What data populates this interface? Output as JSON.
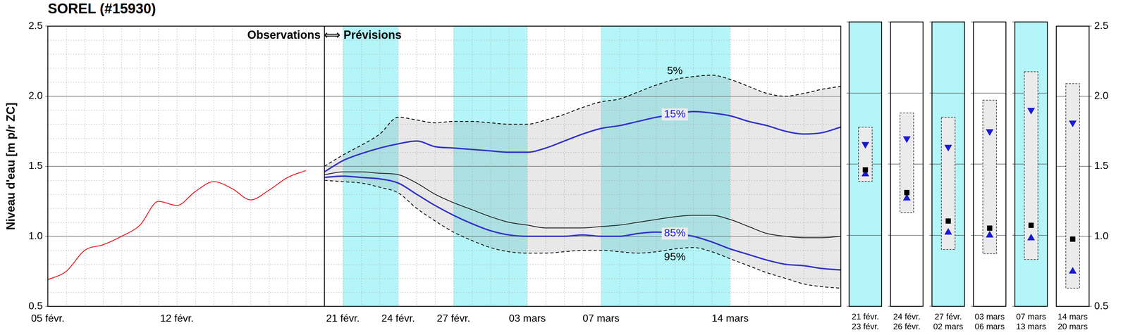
{
  "chart_data": {
    "type": "line",
    "title": "SOREL (#15930)",
    "y_label": "Niveau d'eau [m p/r ZC]",
    "divider_label": "Observations ⟺ Prévisions",
    "categories": [
      "05 févr.",
      null,
      null,
      null,
      null,
      null,
      null,
      "12 févr.",
      null,
      null,
      null,
      null,
      null,
      null,
      null,
      null,
      "21 févr.",
      null,
      null,
      "24 févr.",
      null,
      null,
      "27 févr.",
      null,
      null,
      null,
      "03 mars",
      null,
      null,
      null,
      "07 mars",
      null,
      null,
      null,
      null,
      null,
      null,
      "14 mars",
      null,
      null,
      null,
      null,
      null,
      null
    ],
    "ylim": [
      0.5,
      2.5
    ],
    "yticks": [
      0.5,
      {
        "value": 1,
        "label": "1.0"
      },
      1.5,
      {
        "value": 2,
        "label": "2.0"
      },
      2.5
    ],
    "grid": true,
    "series": [
      {
        "color": "#e8141c",
        "line_style": "solid",
        "values": [
          0.69,
          0.75,
          0.9,
          0.94,
          1.0,
          1.08,
          1.25,
          1.22,
          1.32,
          1.39,
          1.34,
          1.26,
          1.33,
          1.42,
          1.47,
          null,
          null,
          null,
          null,
          null,
          null,
          null,
          null,
          null,
          null,
          null,
          null,
          null,
          null,
          null,
          null,
          null,
          null,
          null,
          null,
          null,
          null,
          null,
          null,
          null,
          null,
          null,
          null,
          null
        ]
      },
      {
        "name": "5%",
        "color": "#000000",
        "line_style": "dashed",
        "values": [
          null,
          null,
          null,
          null,
          null,
          null,
          null,
          null,
          null,
          null,
          null,
          null,
          null,
          null,
          null,
          1.5,
          1.58,
          1.65,
          1.73,
          1.85,
          1.83,
          1.81,
          1.82,
          1.82,
          1.81,
          1.8,
          1.8,
          1.83,
          1.87,
          1.92,
          1.96,
          1.98,
          2.03,
          2.08,
          2.12,
          2.14,
          2.15,
          2.12,
          2.07,
          2.02,
          2.0,
          2.02,
          2.05,
          2.07
        ]
      },
      {
        "name": "15%",
        "color": "#1a1ad6",
        "line_style": "solid",
        "values": [
          null,
          null,
          null,
          null,
          null,
          null,
          null,
          null,
          null,
          null,
          null,
          null,
          null,
          null,
          null,
          1.46,
          1.54,
          1.59,
          1.63,
          1.66,
          1.68,
          1.64,
          1.63,
          1.62,
          1.61,
          1.6,
          1.6,
          1.63,
          1.68,
          1.73,
          1.77,
          1.79,
          1.82,
          1.85,
          1.87,
          1.89,
          1.88,
          1.86,
          1.82,
          1.79,
          1.75,
          1.73,
          1.74,
          1.78
        ]
      },
      {
        "color": "#000000",
        "line_style": "solid",
        "values": [
          null,
          null,
          null,
          null,
          null,
          null,
          null,
          null,
          null,
          null,
          null,
          null,
          null,
          null,
          null,
          1.44,
          1.46,
          1.46,
          1.45,
          1.44,
          1.38,
          1.3,
          1.24,
          1.19,
          1.14,
          1.1,
          1.08,
          1.06,
          1.06,
          1.06,
          1.07,
          1.08,
          1.1,
          1.12,
          1.14,
          1.15,
          1.15,
          1.12,
          1.07,
          1.02,
          1.0,
          0.99,
          0.99,
          1.0
        ]
      },
      {
        "name": "85%",
        "color": "#1a1ad6",
        "line_style": "solid",
        "values": [
          null,
          null,
          null,
          null,
          null,
          null,
          null,
          null,
          null,
          null,
          null,
          null,
          null,
          null,
          null,
          1.42,
          1.43,
          1.42,
          1.41,
          1.38,
          1.3,
          1.22,
          1.15,
          1.09,
          1.04,
          1.01,
          1.0,
          1.0,
          1.0,
          1.01,
          1.0,
          1.0,
          1.02,
          1.03,
          1.02,
          1.0,
          0.96,
          0.91,
          0.87,
          0.83,
          0.8,
          0.79,
          0.77,
          0.76
        ]
      },
      {
        "name": "95%",
        "color": "#000000",
        "line_style": "dashed",
        "values": [
          null,
          null,
          null,
          null,
          null,
          null,
          null,
          null,
          null,
          null,
          null,
          null,
          null,
          null,
          null,
          1.4,
          1.39,
          1.38,
          1.35,
          1.31,
          1.2,
          1.11,
          1.03,
          0.97,
          0.92,
          0.89,
          0.88,
          0.88,
          0.89,
          0.9,
          0.9,
          0.89,
          0.88,
          0.89,
          0.91,
          0.92,
          0.89,
          0.84,
          0.79,
          0.74,
          0.7,
          0.66,
          0.64,
          0.63
        ]
      }
    ],
    "shaded_periods": [
      {
        "from": "21 févr.",
        "to": "24 févr."
      },
      {
        "from": "27 févr.",
        "to": "03 mars"
      },
      {
        "from": "07 mars",
        "to": "14 mars"
      }
    ],
    "period_summary": [
      {
        "start": "21 févr.",
        "end": "23 févr.",
        "p5": 1.76,
        "p15": 1.64,
        "median": 1.46,
        "p85": 1.43,
        "p95": 1.38,
        "shaded": true
      },
      {
        "start": "24 févr.",
        "end": "26 févr.",
        "p5": 1.86,
        "p15": 1.68,
        "median": 1.3,
        "p85": 1.26,
        "p95": 1.16,
        "shaded": false
      },
      {
        "start": "27 févr.",
        "end": "02 mars",
        "p5": 1.83,
        "p15": 1.62,
        "median": 1.1,
        "p85": 1.02,
        "p95": 0.9,
        "shaded": true
      },
      {
        "start": "03 mars",
        "end": "06 mars",
        "p5": 1.95,
        "p15": 1.73,
        "median": 1.05,
        "p85": 1.0,
        "p95": 0.87,
        "shaded": false
      },
      {
        "start": "07 mars",
        "end": "13 mars",
        "p5": 2.15,
        "p15": 1.88,
        "median": 1.07,
        "p85": 0.98,
        "p95": 0.83,
        "shaded": true
      },
      {
        "start": "14 mars",
        "end": "20 mars",
        "p5": 2.09,
        "p15": 1.81,
        "median": 0.98,
        "p85": 0.75,
        "p95": 0.63,
        "shaded": false
      }
    ]
  }
}
